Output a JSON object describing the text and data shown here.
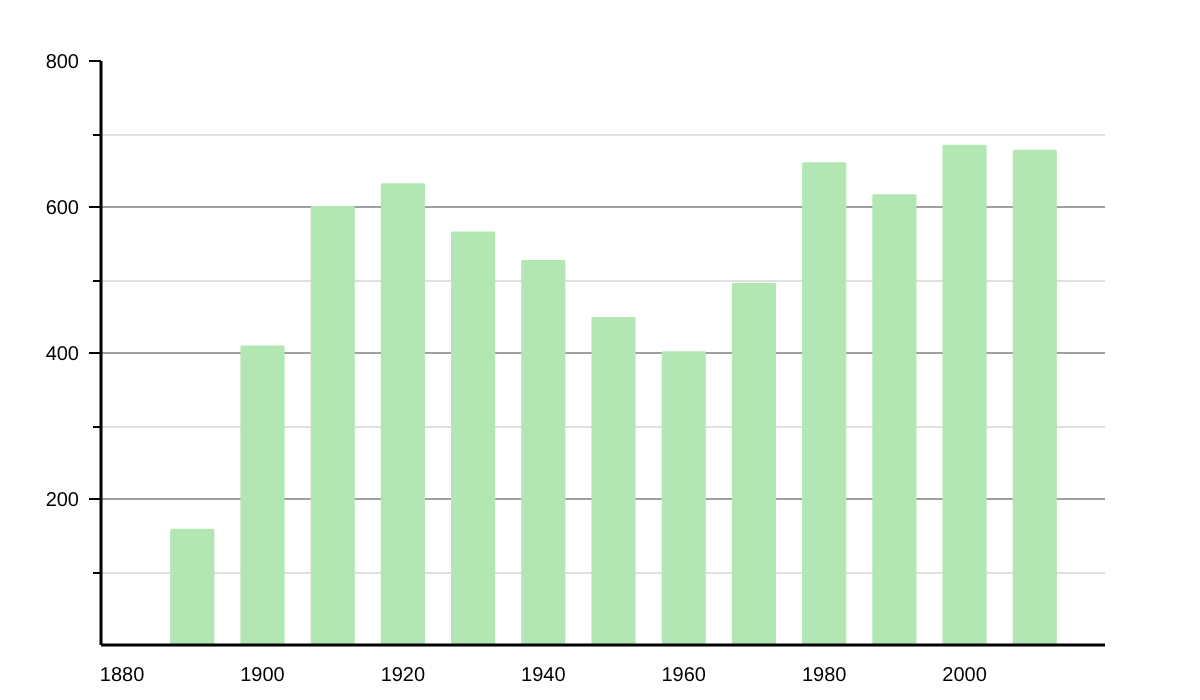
{
  "chart_data": {
    "type": "bar",
    "x": [
      1890,
      1900,
      1910,
      1920,
      1930,
      1940,
      1950,
      1960,
      1970,
      1980,
      1990,
      2000,
      2010
    ],
    "values": [
      158,
      409,
      600,
      631,
      565,
      526,
      448,
      401,
      495,
      660,
      616,
      684,
      677
    ],
    "color": "#b2e6b2",
    "xlim": [
      1877,
      2020
    ],
    "xticks": [
      1880,
      1900,
      1920,
      1940,
      1960,
      1980,
      2000
    ],
    "ylim": [
      0,
      800
    ],
    "yticks": [
      {
        "value": 100,
        "label": null
      },
      200,
      {
        "value": 300,
        "label": null
      },
      400,
      {
        "value": 500,
        "label": null
      },
      600,
      {
        "value": 700,
        "label": null
      },
      800
    ],
    "grid": "y"
  }
}
